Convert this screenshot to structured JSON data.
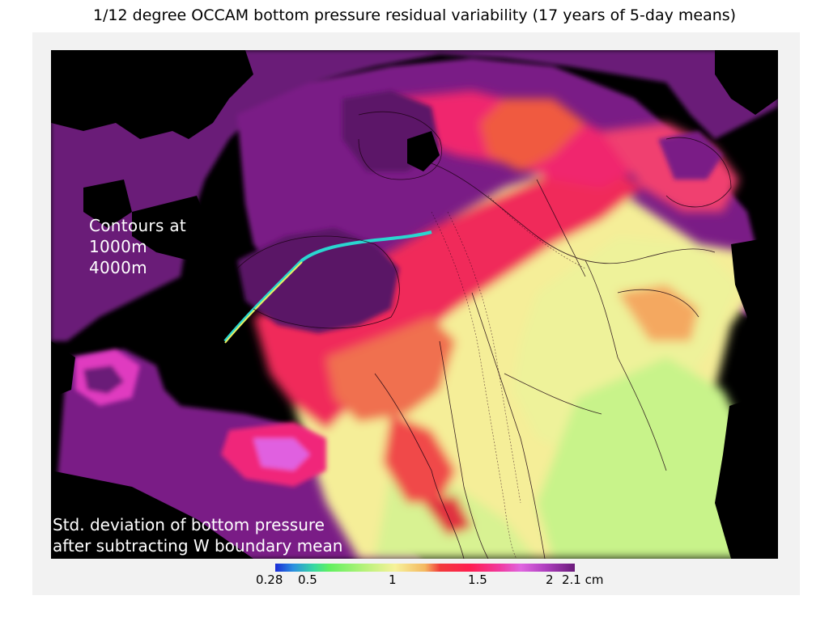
{
  "title": "1/12 degree OCCAM bottom pressure residual variability (17 years of 5-day means)",
  "map": {
    "contour_note": [
      "Contours at",
      "1000m",
      "4000m"
    ],
    "caption": [
      "Std. deviation of bottom pressure",
      "after subtracting W boundary mean"
    ]
  },
  "colorbar": {
    "ticks": [
      "0.28",
      "0.5",
      "1",
      "1.5",
      "2",
      "2.1 cm"
    ],
    "colors": {
      "low": "#1a2bd6",
      "mid_low": "#60f060",
      "mid": "#f7f29a",
      "one": "#f23a3a",
      "high": "#f03aa0",
      "max": "#6a1a7a"
    }
  }
}
